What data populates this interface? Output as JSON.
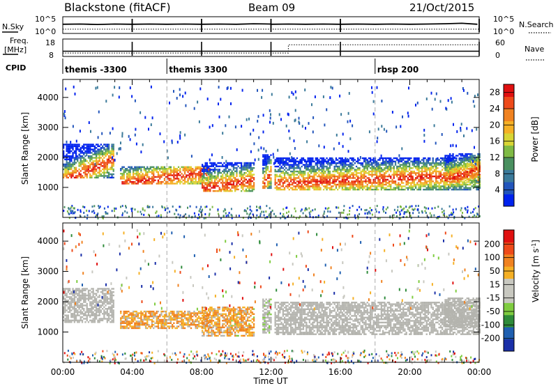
{
  "header": {
    "title": "Blackstone (fitACF)",
    "beam": "Beam 09",
    "date": "21/Oct/2015"
  },
  "colors": {
    "power_scale": [
      "#0022ee",
      "#2255bb",
      "#3b7a9a",
      "#4a9060",
      "#7fba45",
      "#d8d535",
      "#f5b025",
      "#f08220",
      "#ee4a1a",
      "#e01010"
    ],
    "velocity_scale": [
      "#e01010",
      "#ee4a1a",
      "#f08220",
      "#f5b025",
      "#c8c8c0",
      "#c8c8c0",
      "#7fcc40",
      "#2e8b3a",
      "#1f5fb0",
      "#1a2fa8"
    ],
    "ground_scatter": "#b4b4ae"
  },
  "chart_data": [
    {
      "type": "line",
      "panel": "noise",
      "left_label": "N.Sky",
      "right_label": "N.Search",
      "y_ticks_left": [
        "10^5",
        "10^0"
      ],
      "y_ticks_right": [
        "10^5",
        "10^0"
      ],
      "break_hours": [
        4,
        8,
        12,
        16,
        24
      ],
      "series": [
        {
          "name": "N.Sky",
          "x": [
            0,
            1,
            2,
            3,
            3.95,
            4.05,
            5,
            6,
            7,
            7.95,
            8.05,
            9,
            10,
            11,
            11.95,
            12.05,
            13,
            14,
            15,
            15.95,
            16.05,
            17,
            18,
            19,
            20,
            21,
            22,
            23,
            23.9
          ],
          "values": [
            3.0,
            3.1,
            2.9,
            3.1,
            3.0,
            3.0,
            3.1,
            3.0,
            3.1,
            3.0,
            3.0,
            3.1,
            3.0,
            3.2,
            3.1,
            3.0,
            3.1,
            3.0,
            3.1,
            3.0,
            3.0,
            3.1,
            3.0,
            3.1,
            3.0,
            3.1,
            3.2,
            3.4,
            3.0
          ]
        },
        {
          "name": "N.Search",
          "x": [
            0,
            2,
            4,
            6,
            8,
            10,
            12,
            14,
            16,
            18,
            20,
            22,
            24
          ],
          "values": [
            0.9,
            0.9,
            0.9,
            0.9,
            0.9,
            0.9,
            0.9,
            0.9,
            0.9,
            0.9,
            0.9,
            0.9,
            0.9
          ]
        }
      ]
    },
    {
      "type": "line",
      "panel": "frequency",
      "left_label": "Freq.",
      "left_units": "[MHz]",
      "right_label": "Nave",
      "y_ticks_left": [
        "18",
        "8"
      ],
      "y_ticks_right": [
        "60",
        "0"
      ],
      "break_hours": [
        4,
        8,
        12,
        16,
        24
      ],
      "series": [
        {
          "name": "Freq.",
          "x": [
            0,
            24
          ],
          "values": [
            10.5,
            10.5
          ]
        },
        {
          "name": "Nave",
          "x": [
            0,
            13,
            13,
            24
          ],
          "values": [
            8,
            8,
            40,
            40
          ]
        }
      ]
    },
    {
      "type": "table",
      "panel": "cpid",
      "label": "CPID",
      "entries": [
        {
          "hour": 0.0,
          "text": "themis -3300"
        },
        {
          "hour": 6.0,
          "text": "themis 3300"
        },
        {
          "hour": 18.0,
          "text": "rbsp 200"
        }
      ]
    },
    {
      "type": "heatmap",
      "panel": "power",
      "ylabel": "Slant Range [km]",
      "ylim": [
        0,
        4600
      ],
      "y_ticks": [
        1000,
        2000,
        3000,
        4000
      ],
      "xlim": [
        0,
        24
      ],
      "colorbar": {
        "label": "Power [dB]",
        "ticks": [
          4,
          8,
          12,
          16,
          20,
          24,
          28
        ],
        "range": [
          0,
          30
        ]
      },
      "bands": [
        {
          "t0": 0.0,
          "t1": 2.9,
          "r0": 1300,
          "r1": 2450,
          "c0": 1200,
          "c1": 1900
        },
        {
          "t0": 3.3,
          "t1": 8.5,
          "r0": 1100,
          "r1": 1700,
          "c0": 1100,
          "c1": 1500
        },
        {
          "t0": 8.0,
          "t1": 11.0,
          "r0": 850,
          "r1": 1800,
          "c0": 950,
          "c1": 1200
        },
        {
          "t0": 11.5,
          "t1": 12.0,
          "r0": 950,
          "r1": 2100,
          "c0": 1050,
          "c1": 1500
        },
        {
          "t0": 12.2,
          "t1": 24.0,
          "r0": 900,
          "r1": 2000,
          "c0": 1100,
          "c1": 1400
        },
        {
          "t0": 22.0,
          "t1": 24.0,
          "r0": 1150,
          "r1": 2100,
          "c0": 1200,
          "c1": 1600
        }
      ]
    },
    {
      "type": "heatmap",
      "panel": "velocity",
      "ylabel": "Slant Range [km]",
      "xlabel": "Time UT",
      "ylim": [
        0,
        4600
      ],
      "y_ticks": [
        1000,
        2000,
        3000,
        4000
      ],
      "xlim": [
        0,
        24
      ],
      "x_ticks": [
        "00:00",
        "04:00",
        "08:00",
        "12:00",
        "16:00",
        "20:00",
        "00:00"
      ],
      "colorbar": {
        "label": "Velocity [m s^-1]",
        "ticks": [
          200,
          100,
          50,
          15,
          -15,
          -50,
          -100,
          -200
        ]
      },
      "bands": [
        {
          "t0": 0.0,
          "t1": 2.9,
          "r0": 1300,
          "r1": 2450,
          "c0": 1200,
          "c1": 1900
        },
        {
          "t0": 3.3,
          "t1": 8.5,
          "r0": 1100,
          "r1": 1700,
          "c0": 1100,
          "c1": 1500
        },
        {
          "t0": 8.0,
          "t1": 11.0,
          "r0": 850,
          "r1": 1800,
          "c0": 950,
          "c1": 1200
        },
        {
          "t0": 11.5,
          "t1": 12.0,
          "r0": 950,
          "r1": 2100,
          "c0": 1050,
          "c1": 1500
        },
        {
          "t0": 12.2,
          "t1": 24.0,
          "r0": 900,
          "r1": 2000,
          "c0": 1100,
          "c1": 1400
        },
        {
          "t0": 22.0,
          "t1": 24.0,
          "r0": 1150,
          "r1": 2100,
          "c0": 1200,
          "c1": 1600
        }
      ]
    }
  ]
}
